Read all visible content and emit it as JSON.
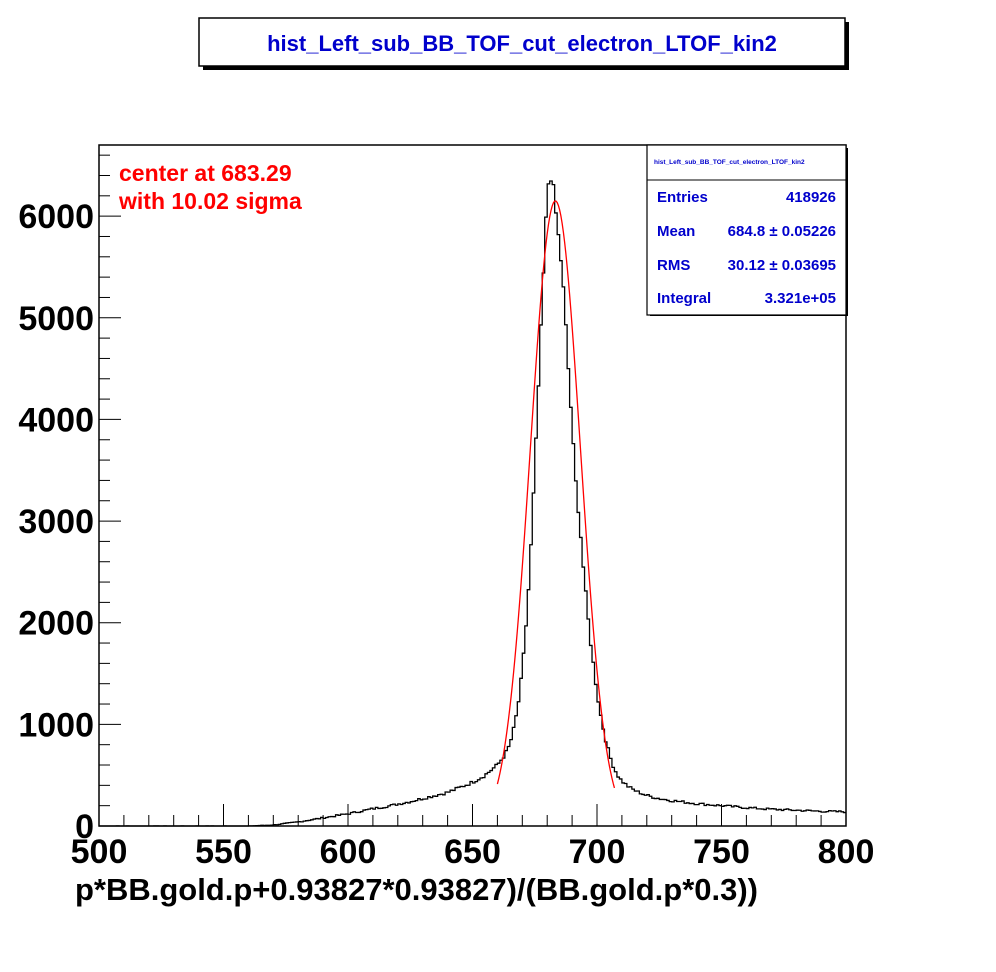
{
  "chart_data": {
    "type": "histogram",
    "title": "hist_Left_sub_BB_TOF_cut_electron_LTOF_kin2",
    "xlabel": "p*BB.gold.p+0.93827*0.93827)/(BB.gold.p*0.3))",
    "ylabel": "",
    "xlim": [
      500,
      800
    ],
    "ylim": [
      0,
      6700
    ],
    "x_ticks": [
      "500",
      "550",
      "600",
      "650",
      "700",
      "750",
      "800"
    ],
    "y_ticks": [
      "0",
      "1000",
      "2000",
      "3000",
      "4000",
      "5000",
      "6000"
    ],
    "grid": false,
    "bin_width": 1,
    "histogram_points": [
      [
        560,
        0
      ],
      [
        565,
        5
      ],
      [
        570,
        10
      ],
      [
        575,
        25
      ],
      [
        580,
        40
      ],
      [
        585,
        60
      ],
      [
        590,
        80
      ],
      [
        595,
        100
      ],
      [
        600,
        120
      ],
      [
        605,
        145
      ],
      [
        610,
        170
      ],
      [
        615,
        190
      ],
      [
        620,
        215
      ],
      [
        625,
        240
      ],
      [
        630,
        270
      ],
      [
        635,
        300
      ],
      [
        640,
        330
      ],
      [
        645,
        380
      ],
      [
        650,
        430
      ],
      [
        655,
        500
      ],
      [
        660,
        600
      ],
      [
        663,
        700
      ],
      [
        665,
        800
      ],
      [
        667,
        1000
      ],
      [
        669,
        1300
      ],
      [
        671,
        1800
      ],
      [
        673,
        2500
      ],
      [
        675,
        3500
      ],
      [
        677,
        4600
      ],
      [
        679,
        5700
      ],
      [
        680,
        6200
      ],
      [
        681,
        6450
      ],
      [
        682,
        6350
      ],
      [
        683,
        6150
      ],
      [
        684,
        5900
      ],
      [
        685,
        5700
      ],
      [
        686,
        5450
      ],
      [
        687,
        5100
      ],
      [
        688,
        4700
      ],
      [
        689,
        4300
      ],
      [
        690,
        3950
      ],
      [
        691,
        3500
      ],
      [
        693,
        3000
      ],
      [
        695,
        2400
      ],
      [
        697,
        1900
      ],
      [
        699,
        1500
      ],
      [
        701,
        1150
      ],
      [
        703,
        900
      ],
      [
        705,
        700
      ],
      [
        707,
        560
      ],
      [
        709,
        470
      ],
      [
        711,
        420
      ],
      [
        713,
        380
      ],
      [
        716,
        340
      ],
      [
        720,
        300
      ],
      [
        725,
        270
      ],
      [
        730,
        250
      ],
      [
        740,
        220
      ],
      [
        750,
        200
      ],
      [
        760,
        180
      ],
      [
        770,
        165
      ],
      [
        780,
        155
      ],
      [
        790,
        145
      ],
      [
        800,
        140
      ]
    ],
    "fit": {
      "type": "gaussian",
      "center": 683.29,
      "sigma": 10.02,
      "amplitude": 6150,
      "range": [
        660,
        707
      ],
      "color": "#ff0000"
    },
    "annotations": [
      "center at 683.29",
      "with 10.02 sigma"
    ],
    "stats": {
      "header": "hist_Left_sub_BB_TOF_cut_electron_LTOF_kin2",
      "rows": [
        {
          "label": "Entries",
          "value": "418926"
        },
        {
          "label": "Mean",
          "value": "684.8 ± 0.05226"
        },
        {
          "label": "RMS",
          "value": "30.12 ± 0.03695"
        },
        {
          "label": "Integral",
          "value": "3.321e+05"
        }
      ]
    },
    "colors": {
      "histogram": "#000000",
      "fit": "#ff0000",
      "title": "#0000cc",
      "stats": "#0000cc",
      "annotation": "#ff0000"
    }
  }
}
